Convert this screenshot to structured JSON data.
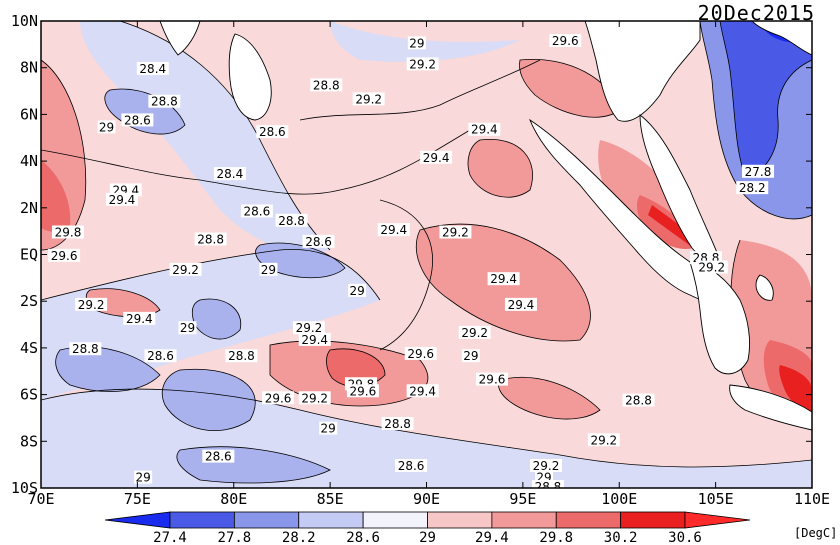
{
  "title": "20Dec2015",
  "unit_label": "[DegC]",
  "map": {
    "lon_range": [
      70,
      110
    ],
    "lat_range": [
      -10,
      10
    ],
    "x_ticks": [
      "70E",
      "75E",
      "80E",
      "85E",
      "90E",
      "95E",
      "100E",
      "105E",
      "110E"
    ],
    "y_ticks": [
      "10N",
      "8N",
      "6N",
      "4N",
      "2N",
      "EQ",
      "2S",
      "4S",
      "6S",
      "8S",
      "10S"
    ]
  },
  "colorbar": {
    "levels": [
      "27.4",
      "27.8",
      "28.2",
      "28.6",
      "29",
      "29.4",
      "29.8",
      "30.2",
      "30.6"
    ],
    "colors": [
      "#1a2bf0",
      "#4a5ae6",
      "#8a96ea",
      "#c4cbf4",
      "#f3f3fb",
      "#f7c7c7",
      "#f29a9a",
      "#ec6a6a",
      "#e82020",
      "#ff2a2a"
    ]
  },
  "contour_labels": [
    {
      "text": "29",
      "lon": 89.5,
      "lat": 9.0
    },
    {
      "text": "29.2",
      "lon": 89.8,
      "lat": 8.1
    },
    {
      "text": "29.6",
      "lon": 97.2,
      "lat": 9.1
    },
    {
      "text": "28.4",
      "lon": 75.8,
      "lat": 7.9
    },
    {
      "text": "28.8",
      "lon": 76.4,
      "lat": 6.5
    },
    {
      "text": "28.6",
      "lon": 75.0,
      "lat": 5.7
    },
    {
      "text": "29",
      "lon": 73.4,
      "lat": 5.4
    },
    {
      "text": "28.8",
      "lon": 84.8,
      "lat": 7.2
    },
    {
      "text": "28.6",
      "lon": 82.0,
      "lat": 5.2
    },
    {
      "text": "29.2",
      "lon": 87.0,
      "lat": 6.6
    },
    {
      "text": "29.4",
      "lon": 93.0,
      "lat": 5.3
    },
    {
      "text": "29.4",
      "lon": 90.5,
      "lat": 4.1
    },
    {
      "text": "28.4",
      "lon": 79.8,
      "lat": 3.4
    },
    {
      "text": "29.4",
      "lon": 74.4,
      "lat": 2.7
    },
    {
      "text": "29.4",
      "lon": 74.2,
      "lat": 2.3
    },
    {
      "text": "28.6",
      "lon": 81.2,
      "lat": 1.8
    },
    {
      "text": "28.8",
      "lon": 83.0,
      "lat": 1.4
    },
    {
      "text": "29.8",
      "lon": 71.4,
      "lat": 0.9
    },
    {
      "text": "29.6",
      "lon": 71.2,
      "lat": -0.1
    },
    {
      "text": "28.8",
      "lon": 78.8,
      "lat": 0.6
    },
    {
      "text": "28.6",
      "lon": 84.4,
      "lat": 0.5
    },
    {
      "text": "29.4",
      "lon": 88.3,
      "lat": 1.0
    },
    {
      "text": "29.2",
      "lon": 91.5,
      "lat": 0.9
    },
    {
      "text": "29.2",
      "lon": 77.5,
      "lat": -0.7
    },
    {
      "text": "29",
      "lon": 81.8,
      "lat": -0.7
    },
    {
      "text": "29",
      "lon": 86.4,
      "lat": -1.6
    },
    {
      "text": "29.4",
      "lon": 94.0,
      "lat": -1.1
    },
    {
      "text": "29.4",
      "lon": 94.9,
      "lat": -2.2
    },
    {
      "text": "29.2",
      "lon": 72.6,
      "lat": -2.2
    },
    {
      "text": "29.4",
      "lon": 75.1,
      "lat": -2.8
    },
    {
      "text": "29",
      "lon": 77.6,
      "lat": -3.2
    },
    {
      "text": "29.2",
      "lon": 83.9,
      "lat": -3.2
    },
    {
      "text": "29.4",
      "lon": 84.2,
      "lat": -3.7
    },
    {
      "text": "29.2",
      "lon": 92.5,
      "lat": -3.4
    },
    {
      "text": "28.8",
      "lon": 72.3,
      "lat": -4.1
    },
    {
      "text": "28.6",
      "lon": 76.2,
      "lat": -4.4
    },
    {
      "text": "28.8",
      "lon": 80.4,
      "lat": -4.4
    },
    {
      "text": "29.6",
      "lon": 89.7,
      "lat": -4.3
    },
    {
      "text": "29",
      "lon": 92.3,
      "lat": -4.4
    },
    {
      "text": "29.6",
      "lon": 93.4,
      "lat": -5.4
    },
    {
      "text": "29.8",
      "lon": 86.6,
      "lat": -5.6
    },
    {
      "text": "29.6",
      "lon": 86.7,
      "lat": -5.9
    },
    {
      "text": "29.4",
      "lon": 89.8,
      "lat": -5.9
    },
    {
      "text": "29.6",
      "lon": 82.3,
      "lat": -6.2
    },
    {
      "text": "29.2",
      "lon": 84.2,
      "lat": -6.2
    },
    {
      "text": "28.8",
      "lon": 101.0,
      "lat": -6.3
    },
    {
      "text": "28.8",
      "lon": 88.5,
      "lat": -7.3
    },
    {
      "text": "29",
      "lon": 84.9,
      "lat": -7.5
    },
    {
      "text": "28.6",
      "lon": 79.2,
      "lat": -8.7
    },
    {
      "text": "29.2",
      "lon": 99.2,
      "lat": -8.0
    },
    {
      "text": "28.6",
      "lon": 89.2,
      "lat": -9.1
    },
    {
      "text": "29.2",
      "lon": 96.2,
      "lat": -9.1
    },
    {
      "text": "29",
      "lon": 96.1,
      "lat": -9.6
    },
    {
      "text": "28.8",
      "lon": 96.3,
      "lat": -10.0
    },
    {
      "text": "29",
      "lon": 75.3,
      "lat": -9.6
    },
    {
      "text": "27.8",
      "lon": 107.2,
      "lat": 3.5
    },
    {
      "text": "28.2",
      "lon": 106.9,
      "lat": 2.8
    },
    {
      "text": "28.8",
      "lon": 104.5,
      "lat": -0.2
    },
    {
      "text": "29.2",
      "lon": 104.8,
      "lat": -0.6
    }
  ]
}
